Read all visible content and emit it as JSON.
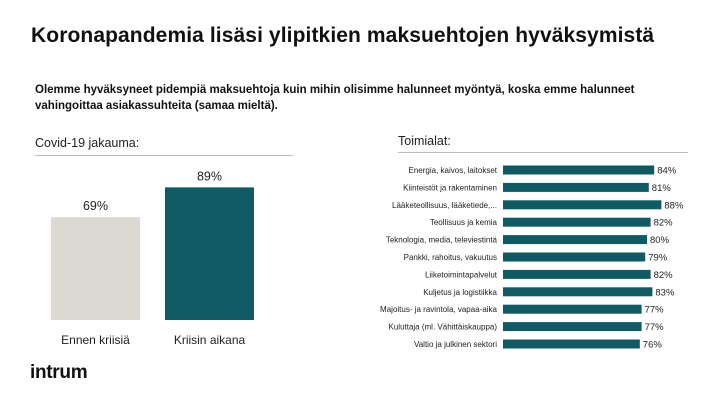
{
  "title": "Koronapandemia lisäsi ylipitkien maksuehtojen hyväksymistä",
  "subtitle": "Olemme hyväksyneet pidempiä maksuehtoja kuin mihin olisimme halunneet myöntyä, koska emme halunneet vahingoittaa asiakassuhteita (samaa mieltä).",
  "logo_text": "intrum",
  "colors": {
    "teal": "#0f5a63",
    "grey": "#dcd8d2",
    "rule": "#bfbfbf"
  },
  "chart_data": [
    {
      "type": "bar",
      "title": "Covid-19 jakauma:",
      "categories": [
        "Ennen kriisiä",
        "Kriisin aikana"
      ],
      "values": [
        69,
        89
      ],
      "value_labels": [
        "69%",
        "89%"
      ],
      "colors": [
        "#dcd8d2",
        "#0f5a63"
      ],
      "ylim": [
        0,
        100
      ],
      "grid": false
    },
    {
      "type": "bar",
      "orientation": "horizontal",
      "title": "Toimialat:",
      "categories": [
        "Energia, kaivos, laitokset",
        "Kiinteistöt ja rakentaminen",
        "Lääketeollisuus, lääketiede,...",
        "Teollisuus ja kemia",
        "Teknologia, media, televiestintä",
        "Pankki, rahoitus, vakuutus",
        "Liiketoimintapalvelut",
        "Kuljetus ja logistiikka",
        "Majoitus- ja ravintola, vapaa-aika",
        "Kuluttaja (ml. Vähittäiskauppa)",
        "Valtio ja julkinen sektori"
      ],
      "values": [
        84,
        81,
        88,
        82,
        80,
        79,
        82,
        83,
        77,
        77,
        76
      ],
      "value_labels": [
        "84%",
        "81%",
        "88%",
        "82%",
        "80%",
        "79%",
        "82%",
        "83%",
        "77%",
        "77%",
        "76%"
      ],
      "color": "#0f5a63",
      "grid": false
    }
  ]
}
